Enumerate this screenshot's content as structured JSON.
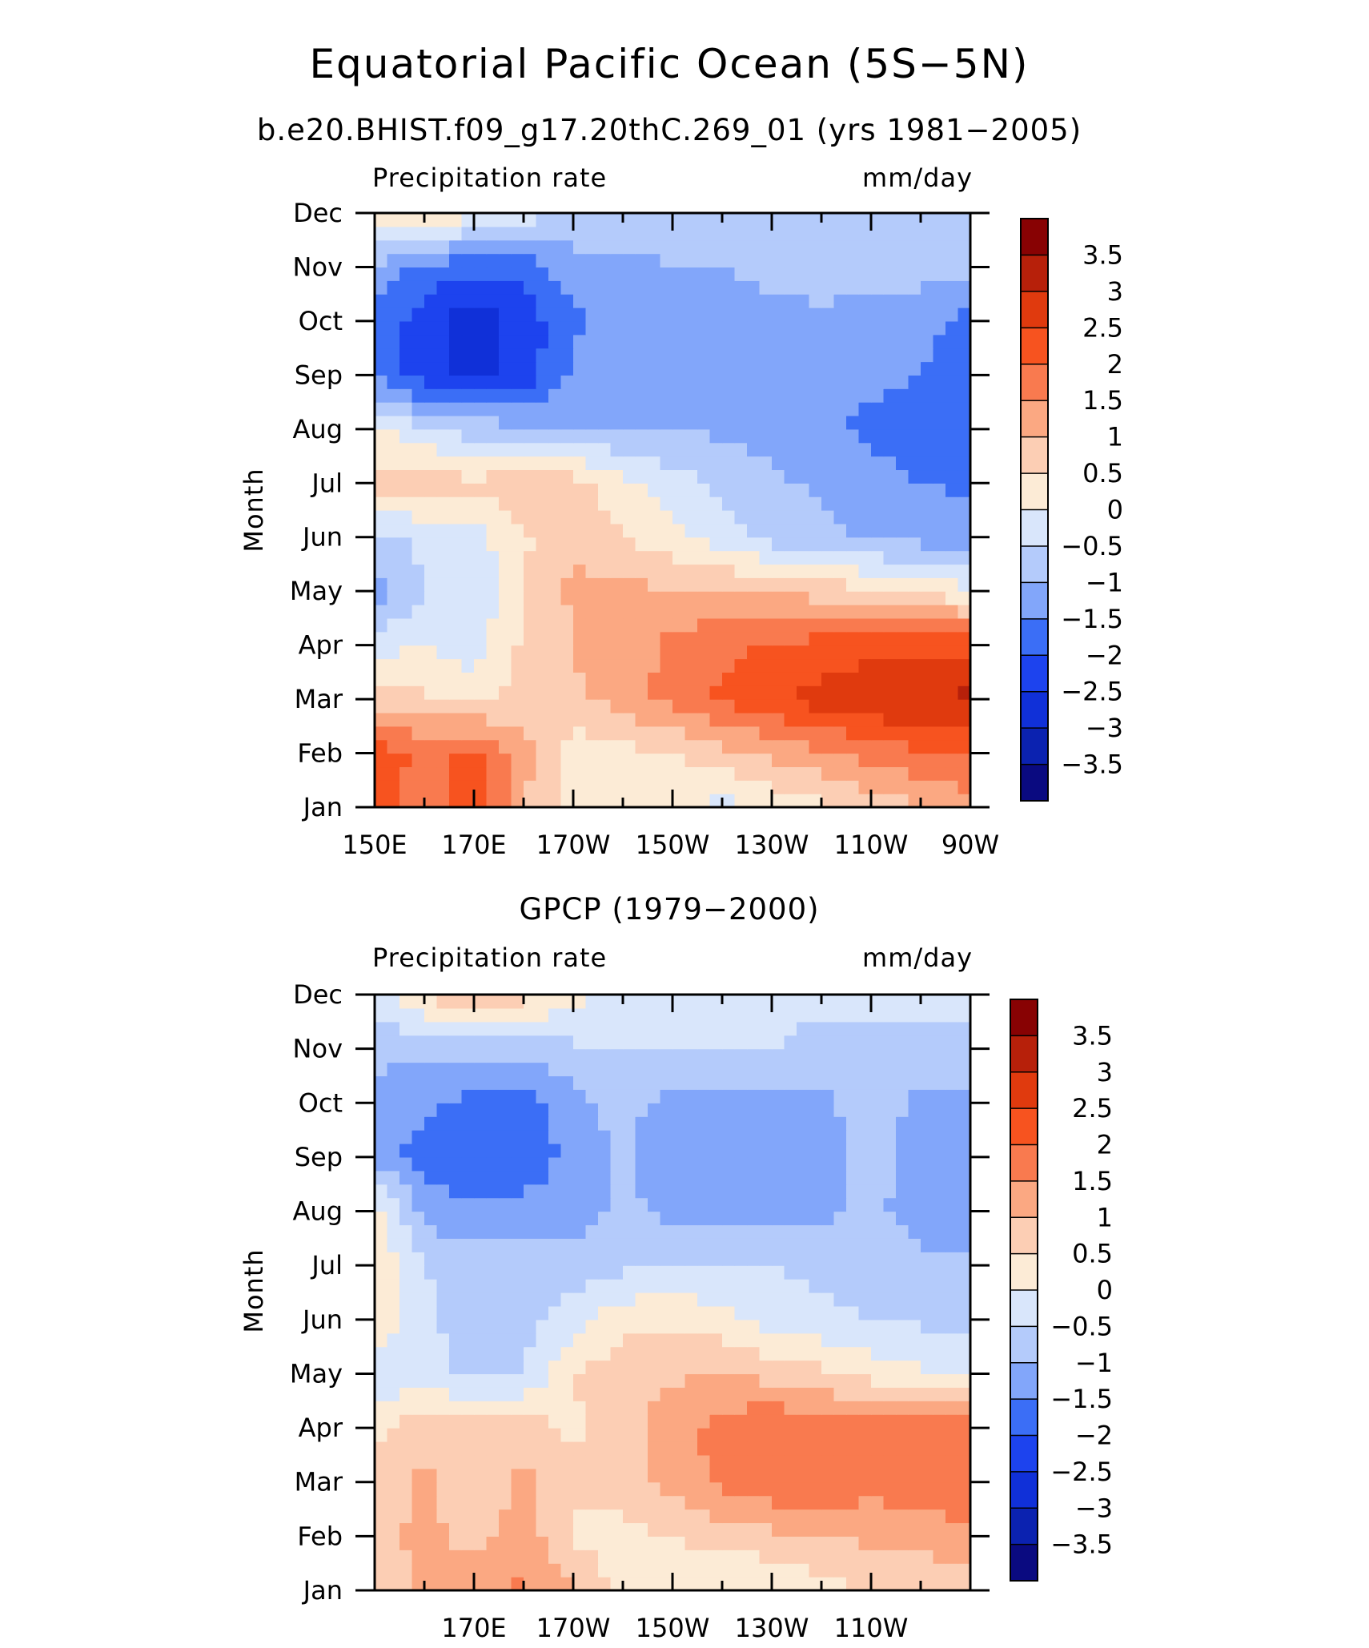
{
  "figure": {
    "title": "Equatorial Pacific Ocean (5S−5N)"
  },
  "chart_data": [
    {
      "type": "heatmap",
      "subtitle": "b.e20.BHIST.f09_g17.20thC.269_01 (yrs 1981−2005)",
      "left_label": "Precipitation rate",
      "right_label": "mm/day",
      "ylabel": "Month",
      "xlabel": "",
      "x_ticklabels": [
        "150E",
        "170E",
        "170W",
        "150W",
        "130W",
        "110W",
        "90W"
      ],
      "x_ticks": [
        150,
        170,
        190,
        210,
        230,
        250,
        270
      ],
      "xlim": [
        150,
        270
      ],
      "y_ticklabels": [
        "Jan",
        "Feb",
        "Mar",
        "Apr",
        "May",
        "Jun",
        "Jul",
        "Aug",
        "Sep",
        "Oct",
        "Nov",
        "Dec"
      ],
      "ylim": [
        1,
        12
      ],
      "colorbar_labels": [
        "3.5",
        "3",
        "2.5",
        "2",
        "1.5",
        "1",
        "0.5",
        "0",
        "−0.5",
        "−1",
        "−1.5",
        "−2",
        "−2.5",
        "−3",
        "−3.5"
      ],
      "x": [
        150,
        160,
        170,
        180,
        190,
        200,
        210,
        220,
        230,
        240,
        250,
        260,
        270
      ],
      "values": [
        [
          2.2,
          1.6,
          2.4,
          1.0,
          0.2,
          0.2,
          0.1,
          -0.2,
          0.1,
          0.4,
          0.7,
          0.9,
          1.2
        ],
        [
          2.4,
          1.8,
          2.2,
          1.2,
          0.2,
          0.3,
          0.5,
          0.8,
          1.1,
          1.4,
          1.7,
          1.9,
          2.1
        ],
        [
          0.8,
          0.6,
          0.3,
          0.8,
          0.9,
          1.2,
          1.7,
          2.1,
          2.4,
          2.7,
          2.9,
          3.0,
          3.1
        ],
        [
          -0.2,
          0.0,
          -0.3,
          0.6,
          1.0,
          1.3,
          1.6,
          1.9,
          2.0,
          2.2,
          2.3,
          2.3,
          2.4
        ],
        [
          -1.3,
          -0.5,
          -0.4,
          0.5,
          1.1,
          1.1,
          1.1,
          1.1,
          1.0,
          0.8,
          0.6,
          0.4,
          0.1
        ],
        [
          -0.7,
          -0.4,
          -0.2,
          0.4,
          0.9,
          0.5,
          0.1,
          -0.3,
          -0.7,
          -0.9,
          -1.1,
          -1.2,
          -1.2
        ],
        [
          0.7,
          0.8,
          0.6,
          1.0,
          0.7,
          0.2,
          -0.3,
          -0.6,
          -0.9,
          -1.1,
          -1.3,
          -1.5,
          -1.6
        ],
        [
          0.2,
          -0.4,
          -0.7,
          -0.9,
          -1.0,
          -1.0,
          -1.0,
          -1.1,
          -1.2,
          -1.4,
          -1.6,
          -1.7,
          -1.8
        ],
        [
          -1.6,
          -2.3,
          -2.7,
          -2.3,
          -1.4,
          -1.3,
          -1.3,
          -1.3,
          -1.3,
          -1.3,
          -1.4,
          -1.5,
          -1.8
        ],
        [
          -1.7,
          -2.3,
          -2.8,
          -2.3,
          -1.6,
          -1.3,
          -1.2,
          -1.2,
          -1.1,
          -1.1,
          -1.2,
          -1.3,
          -1.7
        ],
        [
          -1.1,
          -1.7,
          -1.9,
          -1.8,
          -1.2,
          -1.1,
          -1.0,
          -1.0,
          -0.9,
          -0.8,
          -0.8,
          -0.8,
          -0.9
        ],
        [
          0.3,
          0.6,
          0.2,
          -0.2,
          -0.6,
          -0.7,
          -0.8,
          -0.8,
          -0.8,
          -0.8,
          -0.8,
          -0.9,
          -0.9
        ]
      ]
    },
    {
      "type": "heatmap",
      "subtitle": "GPCP (1979−2000)",
      "left_label": "Precipitation rate",
      "right_label": "mm/day",
      "ylabel": "Month",
      "xlabel": "",
      "x_ticklabels": [
        "170E",
        "170W",
        "150W",
        "130W",
        "110W"
      ],
      "x_ticks": [
        170,
        190,
        210,
        230,
        250
      ],
      "xlim": [
        150,
        270
      ],
      "y_ticklabels": [
        "Jan",
        "Feb",
        "Mar",
        "Apr",
        "May",
        "Jun",
        "Jul",
        "Aug",
        "Sep",
        "Oct",
        "Nov",
        "Dec"
      ],
      "ylim": [
        1,
        12
      ],
      "colorbar_labels": [
        "3.5",
        "3",
        "2.5",
        "2",
        "1.5",
        "1",
        "0.5",
        "0",
        "−0.5",
        "−1",
        "−1.5",
        "−2",
        "−2.5",
        "−3",
        "−3.5"
      ],
      "x": [
        150,
        160,
        170,
        180,
        190,
        200,
        210,
        220,
        230,
        240,
        250,
        260,
        270
      ],
      "values": [
        [
          0.6,
          1.1,
          1.3,
          1.6,
          1.0,
          0.3,
          0.2,
          0.0,
          -0.1,
          0.3,
          0.5,
          0.6,
          0.7
        ],
        [
          0.7,
          1.2,
          0.8,
          1.3,
          0.4,
          0.3,
          0.5,
          0.7,
          0.9,
          1.0,
          1.1,
          1.2,
          1.4
        ],
        [
          0.7,
          1.1,
          0.6,
          1.1,
          0.6,
          0.8,
          1.2,
          1.6,
          1.9,
          1.9,
          1.7,
          1.9,
          1.8
        ],
        [
          0.4,
          0.8,
          0.9,
          0.8,
          0.4,
          0.8,
          1.3,
          1.7,
          2.0,
          1.8,
          1.8,
          2.0,
          1.8
        ],
        [
          -0.3,
          -0.4,
          -0.6,
          -0.5,
          0.5,
          0.8,
          0.9,
          1.0,
          0.8,
          0.6,
          0.3,
          0.1,
          -0.1
        ],
        [
          0.4,
          -0.4,
          -0.7,
          -0.7,
          -0.2,
          0.3,
          0.4,
          0.2,
          -0.2,
          -0.4,
          -0.5,
          -0.6,
          -0.6
        ],
        [
          0.5,
          -0.5,
          -0.8,
          -0.8,
          -0.8,
          -0.6,
          -0.5,
          -0.5,
          -0.5,
          -0.6,
          -0.7,
          -0.9,
          -1.0
        ],
        [
          0.3,
          -1.2,
          -1.3,
          -1.3,
          -1.2,
          -0.9,
          -1.1,
          -1.3,
          -1.3,
          -1.1,
          -0.9,
          -1.2,
          -1.0
        ],
        [
          -1.2,
          -1.8,
          -2.0,
          -1.9,
          -1.3,
          -0.9,
          -1.4,
          -1.4,
          -1.4,
          -1.2,
          -0.8,
          -1.2,
          -1.1
        ],
        [
          -1.1,
          -1.4,
          -1.7,
          -1.8,
          -1.2,
          -0.8,
          -1.2,
          -1.3,
          -1.3,
          -1.1,
          -0.8,
          -1.1,
          -1.1
        ],
        [
          -0.9,
          -0.9,
          -0.8,
          -0.9,
          -0.6,
          -0.5,
          -0.5,
          -0.5,
          -0.5,
          -0.6,
          -0.6,
          -0.6,
          -0.6
        ],
        [
          -0.2,
          0.5,
          1.3,
          0.7,
          0.2,
          -0.2,
          -0.3,
          -0.3,
          -0.4,
          -0.4,
          -0.4,
          -0.4,
          -0.4
        ]
      ]
    }
  ],
  "colors": {
    "levels": [
      "#0a0a80",
      "#0b22b0",
      "#1030d8",
      "#1d43ee",
      "#3b6ef6",
      "#82a6fa",
      "#b4cbfb",
      "#d9e6fb",
      "#fcebd6",
      "#fcceb4",
      "#fba882",
      "#f97a4f",
      "#f7531f",
      "#e03a0e",
      "#b7200a",
      "#880203"
    ]
  }
}
